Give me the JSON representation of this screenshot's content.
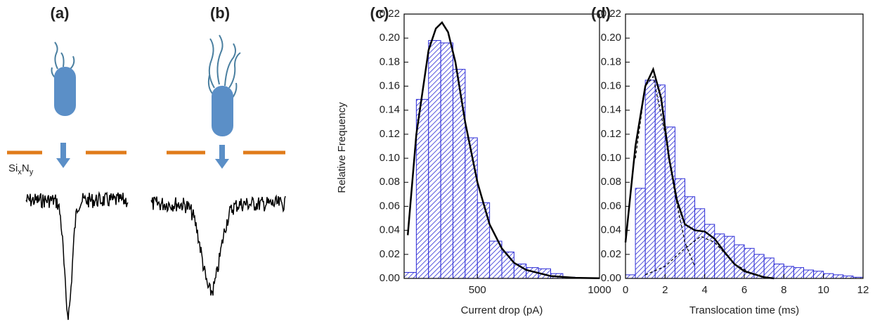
{
  "diagram": {
    "panels": [
      "(a)",
      "(b)"
    ],
    "material": [
      "Si",
      "x",
      "N",
      "y"
    ]
  },
  "chart_data": [
    {
      "type": "histogram",
      "panel_label": "(c)",
      "x_label": "Current drop (pA)",
      "y_label": "Relative Frequency",
      "color": "#2b2bd6",
      "bins": [
        200,
        250,
        300,
        350,
        400,
        450,
        500,
        550,
        600,
        650,
        700,
        750,
        800,
        850,
        900
      ],
      "values": [
        0.005,
        0.149,
        0.198,
        0.196,
        0.174,
        0.117,
        0.063,
        0.031,
        0.022,
        0.012,
        0.009,
        0.008,
        0.004,
        0.001
      ],
      "lines": [
        {
          "color": "#000000",
          "dashed": false,
          "x": [
            215,
            250,
            300,
            330,
            355,
            380,
            410,
            450,
            500,
            550,
            600,
            650,
            700,
            800,
            900,
            1000
          ],
          "values": [
            0.036,
            0.12,
            0.19,
            0.208,
            0.213,
            0.205,
            0.18,
            0.13,
            0.08,
            0.045,
            0.025,
            0.013,
            0.007,
            0.002,
            0.0005,
            0.0001
          ]
        }
      ],
      "xlim": [
        200,
        1000
      ],
      "xticks": [
        500,
        1000
      ],
      "ylim": [
        0,
        0.22
      ],
      "yticks": [
        {
          "value": 0,
          "label": "0.00"
        },
        {
          "value": 0.02,
          "label": "0.02"
        },
        {
          "value": 0.04,
          "label": "0.04"
        },
        {
          "value": 0.06,
          "label": "0.06"
        },
        {
          "value": 0.08,
          "label": "0.08"
        },
        {
          "value": 0.1,
          "label": "0.10"
        },
        {
          "value": 0.12,
          "label": "0.12"
        },
        {
          "value": 0.14,
          "label": "0.14"
        },
        {
          "value": 0.16,
          "label": "0.16"
        },
        {
          "value": 0.18,
          "label": "0.18"
        },
        {
          "value": 0.2,
          "label": "0.20"
        },
        {
          "value": 0.22,
          "label": "0.22"
        }
      ]
    },
    {
      "type": "histogram",
      "panel_label": "(d)",
      "x_label": "Translocation time (ms)",
      "color": "#2b2bd6",
      "bins": [
        0,
        0.5,
        1,
        1.5,
        2,
        2.5,
        3,
        3.5,
        4,
        4.5,
        5,
        5.5,
        6,
        6.5,
        7,
        7.5,
        8,
        8.5,
        9,
        9.5,
        10,
        10.5,
        11,
        11.5,
        12
      ],
      "values": [
        0.003,
        0.075,
        0.165,
        0.161,
        0.126,
        0.083,
        0.068,
        0.058,
        0.045,
        0.037,
        0.035,
        0.028,
        0.025,
        0.02,
        0.017,
        0.012,
        0.01,
        0.009,
        0.007,
        0.006,
        0.004,
        0.003,
        0.002,
        0.001
      ],
      "lines": [
        {
          "color": "#000000",
          "dashed": false,
          "x": [
            0,
            0.5,
            1,
            1.4,
            1.8,
            2.2,
            2.6,
            3,
            3.5,
            4,
            4.5,
            5,
            5.5,
            6,
            7,
            7.5
          ],
          "values": [
            0.03,
            0.11,
            0.16,
            0.174,
            0.15,
            0.1,
            0.065,
            0.045,
            0.04,
            0.039,
            0.033,
            0.022,
            0.012,
            0.006,
            0.001,
            0
          ]
        },
        {
          "color": "#000000",
          "dashed": true,
          "x": [
            0.5,
            1,
            1.4,
            2,
            2.5,
            3,
            3.5
          ],
          "values": [
            0.1,
            0.16,
            0.168,
            0.12,
            0.07,
            0.03,
            0.01
          ]
        },
        {
          "color": "#000000",
          "dashed": true,
          "x": [
            1,
            2,
            3,
            3.8,
            4.5,
            5.5,
            6.5
          ],
          "values": [
            0.003,
            0.01,
            0.025,
            0.035,
            0.03,
            0.012,
            0.003
          ]
        }
      ],
      "xlim": [
        0,
        12
      ],
      "xticks": [
        0,
        2,
        4,
        6,
        8,
        10,
        12
      ],
      "ylim": [
        0,
        0.22
      ],
      "yticks": [
        {
          "value": 0,
          "label": "0.00"
        },
        {
          "value": 0.02,
          "label": "0.02"
        },
        {
          "value": 0.04,
          "label": "0.04"
        },
        {
          "value": 0.06,
          "label": "0.06"
        },
        {
          "value": 0.08,
          "label": "0.08"
        },
        {
          "value": 0.1,
          "label": "0.10"
        },
        {
          "value": 0.12,
          "label": "0.12"
        },
        {
          "value": 0.14,
          "label": "0.14"
        },
        {
          "value": 0.16,
          "label": "0.16"
        },
        {
          "value": 0.18,
          "label": "0.18"
        },
        {
          "value": 0.2,
          "label": "0.20"
        },
        {
          "value": 0.22,
          "label": "0.22"
        }
      ]
    }
  ]
}
